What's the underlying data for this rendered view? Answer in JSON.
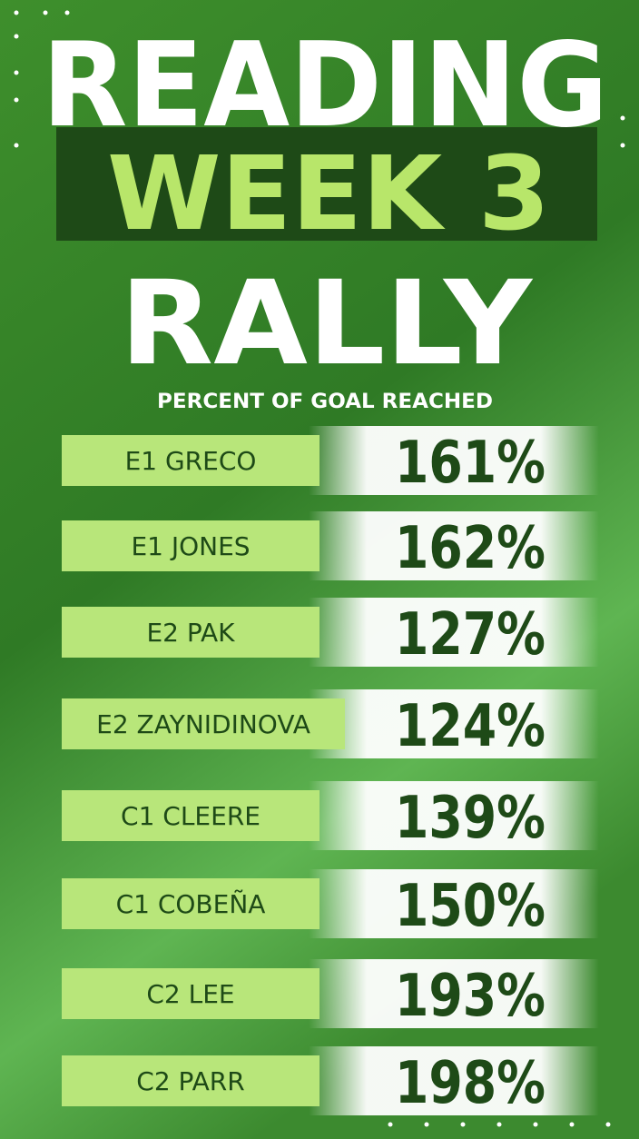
{
  "header": {
    "title_line1": "READING",
    "title_line2": "WEEK 3",
    "title_line3": "RALLY",
    "subtitle": "PERCENT OF GOAL REACHED"
  },
  "rows": [
    {
      "name": "E1 GRECO",
      "percent": "161%"
    },
    {
      "name": "E1 JONES",
      "percent": "162%"
    },
    {
      "name": "E2 PAK",
      "percent": "127%"
    },
    {
      "name": "E2 ZAYNIDINOVA",
      "percent": "124%"
    },
    {
      "name": "C1 CLEERE",
      "percent": "139%"
    },
    {
      "name": "C1 COBEÑA",
      "percent": "150%"
    },
    {
      "name": "C2 LEE",
      "percent": "193%"
    },
    {
      "name": "C2 PARR",
      "percent": "198%"
    }
  ]
}
